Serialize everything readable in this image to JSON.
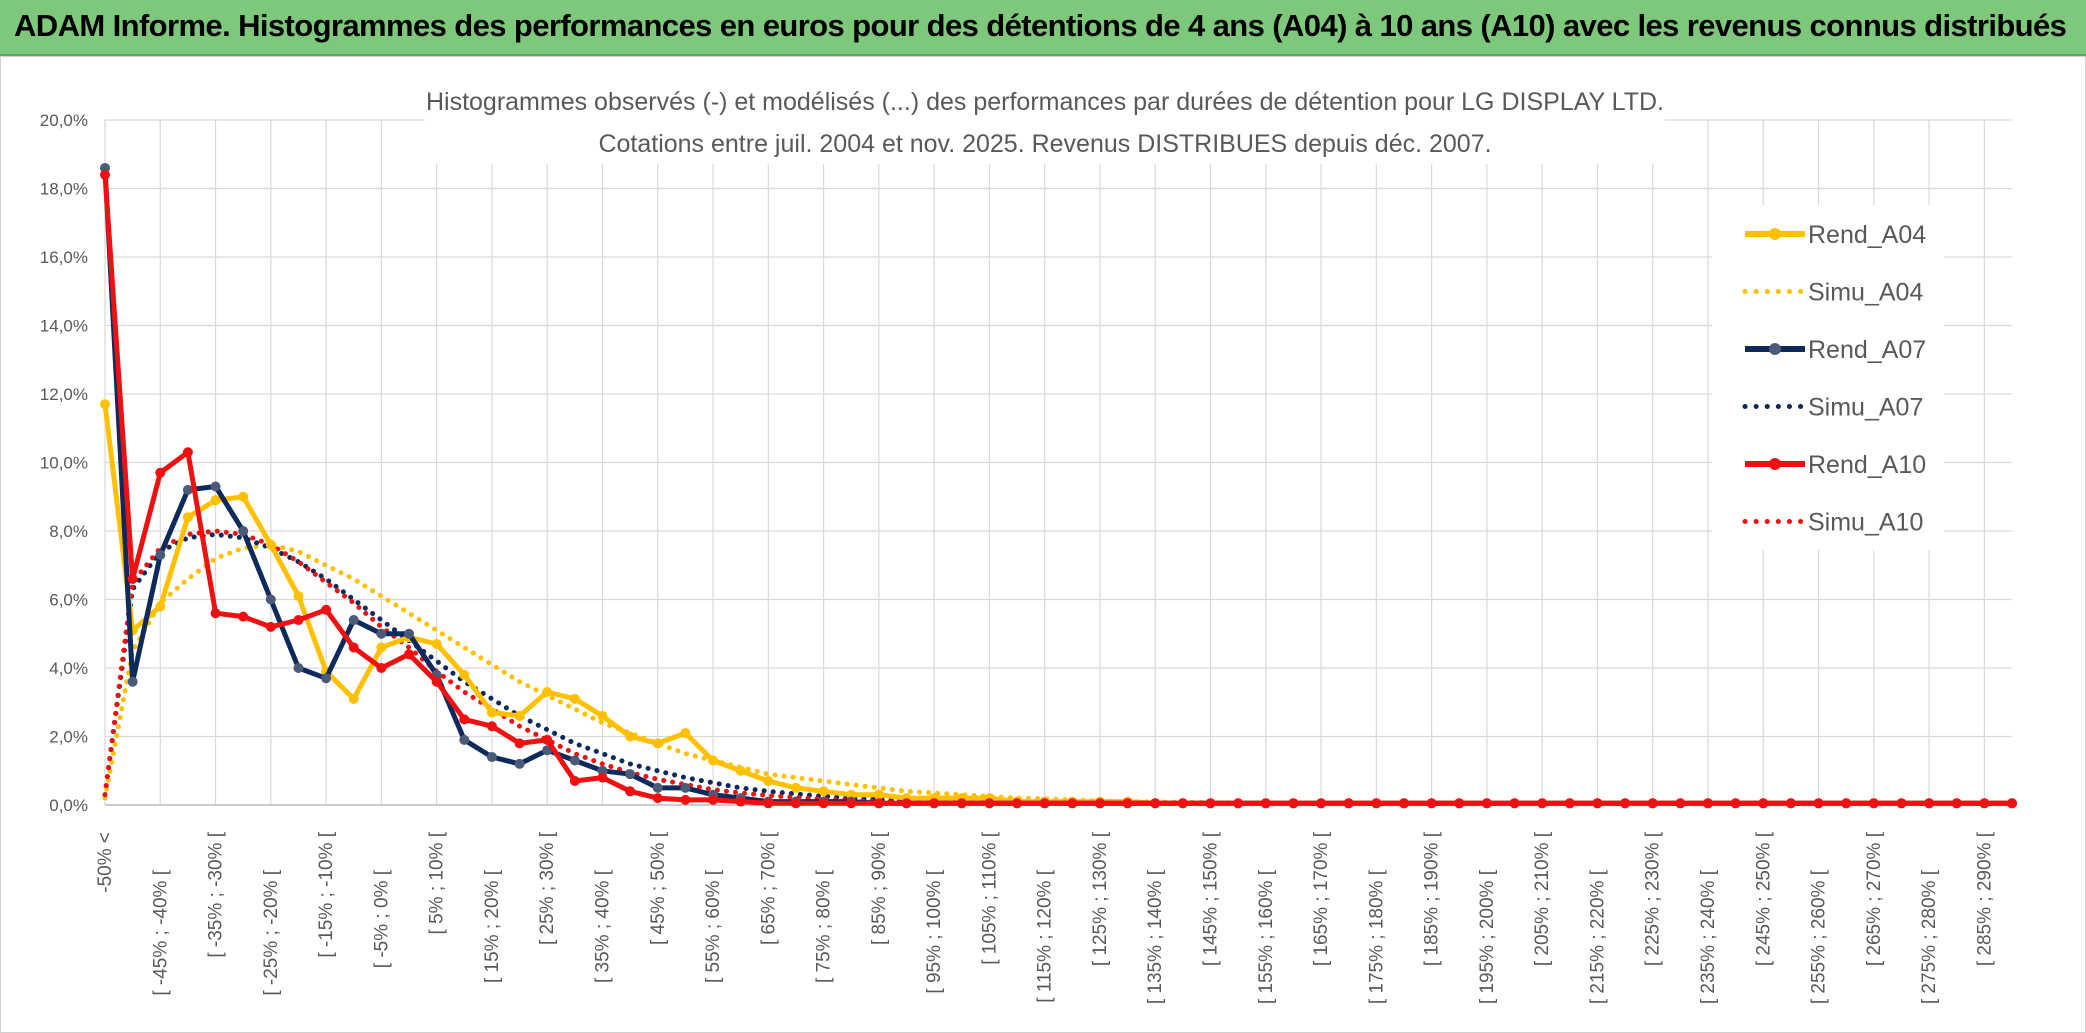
{
  "banner": {
    "title": "ADAM Informe. Histogrammes des performances en euros pour des détentions de 4 ans (A04) à 10 ans (A10) avec les revenus connus distribués"
  },
  "chart_data": {
    "type": "line",
    "title": "Histogrammes observés (-) et modélisés (...) des performances par durées de détention pour LG DISPLAY LTD.",
    "subtitle": "Cotations entre juil. 2004 et nov. 2025. Revenus DISTRIBUES depuis déc. 2007.",
    "ylim": [
      0,
      20
    ],
    "y_ticks": [
      "0,0%",
      "2,0%",
      "4,0%",
      "6,0%",
      "8,0%",
      "10,0%",
      "12,0%",
      "14,0%",
      "16,0%",
      "18,0%",
      "20,0%"
    ],
    "grid": true,
    "legend_position": "right",
    "x_tick_labels": [
      "-50% <",
      "[ -45% ; -40% [",
      "[ -35% ; -30% [",
      "[ -25% ; -20% [",
      "[ -15% ; -10% [",
      "[ -5% ; 0% [",
      "[ 5% ; 10% [",
      "[ 15% ; 20% [",
      "[ 25% ; 30% [",
      "[ 35% ; 40% [",
      "[ 45% ; 50% [",
      "[ 55% ; 60% [",
      "[ 65% ; 70% [",
      "[ 75% ; 80% [",
      "[ 85% ; 90% [",
      "[ 95% ; 100% [",
      "[ 105% ; 110% [",
      "[ 115% ; 120% [",
      "[ 125% ; 130% [",
      "[ 135% ; 140% [",
      "[ 145% ; 150% [",
      "[ 155% ; 160% [",
      "[ 165% ; 170% [",
      "[ 175% ; 180% [",
      "[ 185% ; 190% [",
      "[ 195% ; 200% [",
      "[ 205% ; 210% [",
      "[ 215% ; 220% [",
      "[ 225% ; 230% [",
      "[ 235% ; 240% [",
      "[ 245% ; 250% [",
      "[ 255% ; 260% [",
      "[ 265% ; 270% [",
      "[ 275% ; 280% [",
      "[ 285% ; 290% ["
    ],
    "series": [
      {
        "name": "Rend_A04",
        "style": "solid",
        "color": "#ffc000",
        "values": [
          11.7,
          5.1,
          5.8,
          8.4,
          8.9,
          9.0,
          7.6,
          6.1,
          3.9,
          3.1,
          4.6,
          4.9,
          4.7,
          3.8,
          2.7,
          2.6,
          3.3,
          3.1,
          2.6,
          2.0,
          1.8,
          2.1,
          1.3,
          1.0,
          0.7,
          0.5,
          0.4,
          0.3,
          0.3,
          0.2,
          0.2,
          0.2,
          0.2,
          0.1,
          0.1,
          0.1,
          0.1,
          0.1,
          0.05,
          0.05,
          0.05,
          0.05,
          0.05,
          0.05,
          0.05,
          0.05,
          0.05,
          0.05,
          0.05,
          0.05,
          0.05,
          0.05,
          0.05,
          0.05,
          0.05,
          0.05,
          0.05,
          0.05,
          0.05,
          0.05,
          0.05,
          0.05,
          0.05,
          0.05,
          0.05,
          0.05,
          0.05,
          0.05,
          0.05,
          0.05
        ]
      },
      {
        "name": "Simu_A04",
        "style": "dotted",
        "color": "#ffc000",
        "values": [
          0.2,
          4.5,
          5.9,
          6.6,
          7.2,
          7.5,
          7.6,
          7.4,
          7.0,
          6.6,
          6.1,
          5.6,
          5.1,
          4.6,
          4.1,
          3.6,
          3.2,
          2.8,
          2.4,
          2.1,
          1.8,
          1.5,
          1.3,
          1.1,
          0.9,
          0.8,
          0.7,
          0.6,
          0.5,
          0.4,
          0.35,
          0.3,
          0.25,
          0.2,
          0.18,
          0.15,
          0.12,
          0.1,
          0.09,
          0.08,
          0.07,
          0.06,
          0.05,
          0.05,
          0.05,
          0.05,
          0.05,
          0.05,
          0.05,
          0.05,
          0.05,
          0.05,
          0.05,
          0.05,
          0.05,
          0.05,
          0.05,
          0.05,
          0.05,
          0.05,
          0.05,
          0.05,
          0.05,
          0.05,
          0.05,
          0.05,
          0.05,
          0.05,
          0.05,
          0.05
        ]
      },
      {
        "name": "Rend_A07",
        "style": "solid",
        "color": "#0e2a5c",
        "values": [
          18.6,
          3.6,
          7.3,
          9.2,
          9.3,
          8.0,
          6.0,
          4.0,
          3.7,
          5.4,
          5.0,
          5.0,
          3.8,
          1.9,
          1.4,
          1.2,
          1.6,
          1.3,
          1.0,
          0.9,
          0.5,
          0.5,
          0.3,
          0.2,
          0.1,
          0.1,
          0.1,
          0.1,
          0.05,
          0.05,
          0.05,
          0.05,
          0.05,
          0.05,
          0.05,
          0.05,
          0.05,
          0.05,
          0.05,
          0.05,
          0.05,
          0.05,
          0.05,
          0.05,
          0.05,
          0.05,
          0.05,
          0.05,
          0.05,
          0.05,
          0.05,
          0.05,
          0.05,
          0.05,
          0.05,
          0.05,
          0.05,
          0.05,
          0.05,
          0.05,
          0.05,
          0.05,
          0.05,
          0.05,
          0.05,
          0.05,
          0.05,
          0.05,
          0.05,
          0.05
        ]
      },
      {
        "name": "Simu_A07",
        "style": "dotted",
        "color": "#0e2a5c",
        "values": [
          0.3,
          6.3,
          7.4,
          7.8,
          7.9,
          7.8,
          7.5,
          7.1,
          6.6,
          6.0,
          5.4,
          4.8,
          4.2,
          3.6,
          3.1,
          2.6,
          2.2,
          1.8,
          1.5,
          1.2,
          1.0,
          0.8,
          0.65,
          0.5,
          0.4,
          0.32,
          0.25,
          0.2,
          0.16,
          0.13,
          0.1,
          0.08,
          0.06,
          0.05,
          0.05,
          0.05,
          0.05,
          0.05,
          0.05,
          0.05,
          0.05,
          0.05,
          0.05,
          0.05,
          0.05,
          0.05,
          0.05,
          0.05,
          0.05,
          0.05,
          0.05,
          0.05,
          0.05,
          0.05,
          0.05,
          0.05,
          0.05,
          0.05,
          0.05,
          0.05,
          0.05,
          0.05,
          0.05,
          0.05,
          0.05,
          0.05,
          0.05,
          0.05,
          0.05,
          0.05
        ]
      },
      {
        "name": "Rend_A10",
        "style": "solid",
        "color": "#ee1111",
        "values": [
          18.4,
          6.6,
          9.7,
          10.3,
          5.6,
          5.5,
          5.2,
          5.4,
          5.7,
          4.6,
          4.0,
          4.4,
          3.6,
          2.5,
          2.3,
          1.8,
          1.9,
          0.7,
          0.8,
          0.4,
          0.2,
          0.15,
          0.15,
          0.1,
          0.05,
          0.05,
          0.05,
          0.05,
          0.05,
          0.05,
          0.05,
          0.05,
          0.05,
          0.05,
          0.05,
          0.05,
          0.05,
          0.05,
          0.05,
          0.05,
          0.05,
          0.05,
          0.05,
          0.05,
          0.05,
          0.05,
          0.05,
          0.05,
          0.05,
          0.05,
          0.05,
          0.05,
          0.05,
          0.05,
          0.05,
          0.05,
          0.05,
          0.05,
          0.05,
          0.05,
          0.05,
          0.05,
          0.05,
          0.05,
          0.05,
          0.05,
          0.05,
          0.05,
          0.05,
          0.05
        ]
      },
      {
        "name": "Simu_A10",
        "style": "dotted",
        "color": "#ee1111",
        "values": [
          0.3,
          6.5,
          7.5,
          7.9,
          8.0,
          7.9,
          7.6,
          7.1,
          6.5,
          5.9,
          5.2,
          4.6,
          3.9,
          3.3,
          2.8,
          2.3,
          1.9,
          1.5,
          1.2,
          0.95,
          0.75,
          0.6,
          0.45,
          0.35,
          0.28,
          0.22,
          0.17,
          0.13,
          0.1,
          0.08,
          0.06,
          0.05,
          0.05,
          0.05,
          0.05,
          0.05,
          0.05,
          0.05,
          0.05,
          0.05,
          0.05,
          0.05,
          0.05,
          0.05,
          0.05,
          0.05,
          0.05,
          0.05,
          0.05,
          0.05,
          0.05,
          0.05,
          0.05,
          0.05,
          0.05,
          0.05,
          0.05,
          0.05,
          0.05,
          0.05,
          0.05,
          0.05,
          0.05,
          0.05,
          0.05,
          0.05,
          0.05,
          0.05,
          0.05,
          0.05
        ]
      }
    ]
  }
}
